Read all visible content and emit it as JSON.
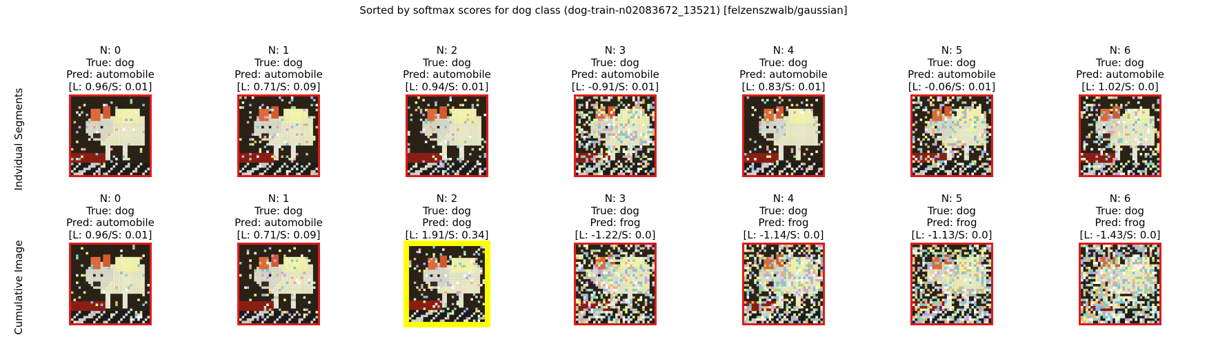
{
  "title": "Sorted by softmax scores for dog class (dog-train-n02083672_13521) [felzenszwalb/gaussian]",
  "row_labels": [
    "Indvidual Segments",
    "Cumulative Image"
  ],
  "colors": {
    "highlight_border": "#ffff00",
    "default_border": "#e01b1b"
  },
  "rows": [
    {
      "panels": [
        {
          "n": "N: 0",
          "true": "True: dog",
          "pred": "Pred: automobile",
          "ls": "[L: 0.96/S: 0.01]",
          "highlight": false,
          "noise": 0.05
        },
        {
          "n": "N: 1",
          "true": "True: dog",
          "pred": "Pred: automobile",
          "ls": "[L: 0.71/S: 0.09]",
          "highlight": false,
          "noise": 0.1
        },
        {
          "n": "N: 2",
          "true": "True: dog",
          "pred": "Pred: automobile",
          "ls": "[L: 0.94/S: 0.01]",
          "highlight": false,
          "noise": 0.1
        },
        {
          "n": "N: 3",
          "true": "True: dog",
          "pred": "Pred: automobile",
          "ls": "[L: -0.91/S: 0.01]",
          "highlight": false,
          "noise": 0.35
        },
        {
          "n": "N: 4",
          "true": "True: dog",
          "pred": "Pred: automobile",
          "ls": "[L: 0.83/S: 0.01]",
          "highlight": false,
          "noise": 0.1
        },
        {
          "n": "N: 5",
          "true": "True: dog",
          "pred": "Pred: automobile",
          "ls": "[L: -0.06/S: 0.01]",
          "highlight": false,
          "noise": 0.3
        },
        {
          "n": "N: 6",
          "true": "True: dog",
          "pred": "Pred: automobile",
          "ls": "[L: 1.02/S: 0.0]",
          "highlight": false,
          "noise": 0.25
        }
      ]
    },
    {
      "panels": [
        {
          "n": "N: 0",
          "true": "True: dog",
          "pred": "Pred: automobile",
          "ls": "[L: 0.96/S: 0.01]",
          "highlight": false,
          "noise": 0.05
        },
        {
          "n": "N: 1",
          "true": "True: dog",
          "pred": "Pred: automobile",
          "ls": "[L: 0.71/S: 0.09]",
          "highlight": false,
          "noise": 0.1
        },
        {
          "n": "N: 2",
          "true": "True: dog",
          "pred": "Pred: dog",
          "ls": "[L: 1.91/S: 0.34]",
          "highlight": true,
          "noise": 0.15
        },
        {
          "n": "N: 3",
          "true": "True: dog",
          "pred": "Pred: frog",
          "ls": "[L: -1.22/S: 0.0]",
          "highlight": false,
          "noise": 0.4
        },
        {
          "n": "N: 4",
          "true": "True: dog",
          "pred": "Pred: frog",
          "ls": "[L: -1.14/S: 0.0]",
          "highlight": false,
          "noise": 0.45
        },
        {
          "n": "N: 5",
          "true": "True: dog",
          "pred": "Pred: frog",
          "ls": "[L: -1.13/S: 0.0]",
          "highlight": false,
          "noise": 0.5
        },
        {
          "n": "N: 6",
          "true": "True: dog",
          "pred": "Pred: frog",
          "ls": "[L: -1.43/S: 0.0]",
          "highlight": false,
          "noise": 0.55
        }
      ]
    }
  ]
}
